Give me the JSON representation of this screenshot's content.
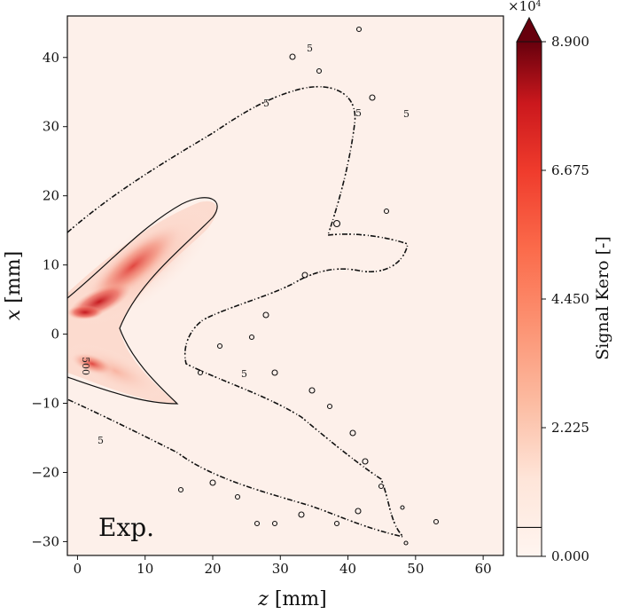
{
  "chart_data": {
    "type": "heatmap",
    "panel_label": "Exp.",
    "xlabel_var": "z",
    "xlabel_unit": " [mm]",
    "ylabel_var": "x",
    "ylabel_unit": " [mm]",
    "xlim": [
      -1.5,
      63
    ],
    "ylim": [
      -32,
      46
    ],
    "xticks": [
      0,
      10,
      20,
      30,
      40,
      50,
      60
    ],
    "yticks": [
      -30,
      -20,
      -10,
      0,
      10,
      20,
      30,
      40
    ],
    "colorbar": {
      "label": "Signal Kero [-]",
      "ticks": [
        "0.000",
        "2.225",
        "4.450",
        "6.675",
        "8.900"
      ],
      "tick_values": [
        0,
        2.225,
        4.45,
        6.675,
        8.9
      ],
      "range": [
        0,
        8.9
      ],
      "exponent_label": "×10",
      "exponent_power": "4",
      "extend": "max",
      "colormap": "Reds",
      "contour_level": 0.5
    },
    "contour_labels": {
      "main": "500",
      "small": "5"
    },
    "intensity_regions": [
      {
        "name": "upper-lobe",
        "z": [
          0,
          21
        ],
        "x": [
          1,
          19
        ],
        "peak": 6.2
      },
      {
        "name": "lower-lobe",
        "z": [
          0,
          15
        ],
        "x": [
          -10,
          -2
        ],
        "peak": 4.7
      },
      {
        "name": "upper-core",
        "z": [
          5,
          14
        ],
        "x": [
          6,
          12
        ],
        "peak": 5.8
      },
      {
        "name": "inlet-core",
        "z": [
          0,
          4
        ],
        "x": [
          2,
          4
        ],
        "peak": 6.8
      },
      {
        "name": "lower-core",
        "z": [
          0,
          4
        ],
        "x": [
          -6,
          -2
        ],
        "peak": 4.6
      }
    ],
    "grid": false,
    "colors": {
      "background": "#fdf0ea",
      "low": "#fff5f0",
      "mid": "#fb6a4a",
      "high": "#67000d",
      "contour": "#111111"
    }
  }
}
